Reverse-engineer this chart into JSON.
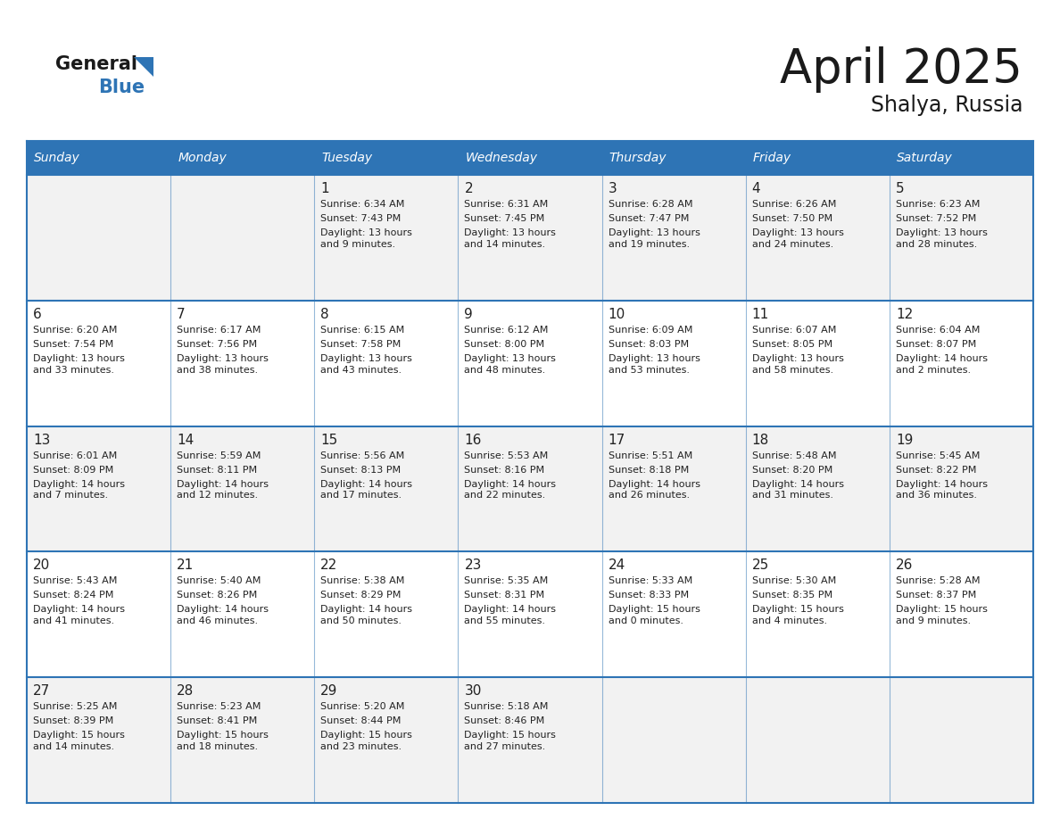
{
  "title": "April 2025",
  "subtitle": "Shalya, Russia",
  "header_bg": "#2E74B5",
  "header_text_color": "#FFFFFF",
  "cell_bg_light": "#F2F2F2",
  "cell_bg_white": "#FFFFFF",
  "border_color": "#2E74B5",
  "text_color": "#222222",
  "days_of_week": [
    "Sunday",
    "Monday",
    "Tuesday",
    "Wednesday",
    "Thursday",
    "Friday",
    "Saturday"
  ],
  "weeks": [
    [
      {
        "day": "",
        "sunrise": "",
        "sunset": "",
        "daylight": ""
      },
      {
        "day": "",
        "sunrise": "",
        "sunset": "",
        "daylight": ""
      },
      {
        "day": "1",
        "sunrise": "Sunrise: 6:34 AM",
        "sunset": "Sunset: 7:43 PM",
        "daylight": "Daylight: 13 hours\nand 9 minutes."
      },
      {
        "day": "2",
        "sunrise": "Sunrise: 6:31 AM",
        "sunset": "Sunset: 7:45 PM",
        "daylight": "Daylight: 13 hours\nand 14 minutes."
      },
      {
        "day": "3",
        "sunrise": "Sunrise: 6:28 AM",
        "sunset": "Sunset: 7:47 PM",
        "daylight": "Daylight: 13 hours\nand 19 minutes."
      },
      {
        "day": "4",
        "sunrise": "Sunrise: 6:26 AM",
        "sunset": "Sunset: 7:50 PM",
        "daylight": "Daylight: 13 hours\nand 24 minutes."
      },
      {
        "day": "5",
        "sunrise": "Sunrise: 6:23 AM",
        "sunset": "Sunset: 7:52 PM",
        "daylight": "Daylight: 13 hours\nand 28 minutes."
      }
    ],
    [
      {
        "day": "6",
        "sunrise": "Sunrise: 6:20 AM",
        "sunset": "Sunset: 7:54 PM",
        "daylight": "Daylight: 13 hours\nand 33 minutes."
      },
      {
        "day": "7",
        "sunrise": "Sunrise: 6:17 AM",
        "sunset": "Sunset: 7:56 PM",
        "daylight": "Daylight: 13 hours\nand 38 minutes."
      },
      {
        "day": "8",
        "sunrise": "Sunrise: 6:15 AM",
        "sunset": "Sunset: 7:58 PM",
        "daylight": "Daylight: 13 hours\nand 43 minutes."
      },
      {
        "day": "9",
        "sunrise": "Sunrise: 6:12 AM",
        "sunset": "Sunset: 8:00 PM",
        "daylight": "Daylight: 13 hours\nand 48 minutes."
      },
      {
        "day": "10",
        "sunrise": "Sunrise: 6:09 AM",
        "sunset": "Sunset: 8:03 PM",
        "daylight": "Daylight: 13 hours\nand 53 minutes."
      },
      {
        "day": "11",
        "sunrise": "Sunrise: 6:07 AM",
        "sunset": "Sunset: 8:05 PM",
        "daylight": "Daylight: 13 hours\nand 58 minutes."
      },
      {
        "day": "12",
        "sunrise": "Sunrise: 6:04 AM",
        "sunset": "Sunset: 8:07 PM",
        "daylight": "Daylight: 14 hours\nand 2 minutes."
      }
    ],
    [
      {
        "day": "13",
        "sunrise": "Sunrise: 6:01 AM",
        "sunset": "Sunset: 8:09 PM",
        "daylight": "Daylight: 14 hours\nand 7 minutes."
      },
      {
        "day": "14",
        "sunrise": "Sunrise: 5:59 AM",
        "sunset": "Sunset: 8:11 PM",
        "daylight": "Daylight: 14 hours\nand 12 minutes."
      },
      {
        "day": "15",
        "sunrise": "Sunrise: 5:56 AM",
        "sunset": "Sunset: 8:13 PM",
        "daylight": "Daylight: 14 hours\nand 17 minutes."
      },
      {
        "day": "16",
        "sunrise": "Sunrise: 5:53 AM",
        "sunset": "Sunset: 8:16 PM",
        "daylight": "Daylight: 14 hours\nand 22 minutes."
      },
      {
        "day": "17",
        "sunrise": "Sunrise: 5:51 AM",
        "sunset": "Sunset: 8:18 PM",
        "daylight": "Daylight: 14 hours\nand 26 minutes."
      },
      {
        "day": "18",
        "sunrise": "Sunrise: 5:48 AM",
        "sunset": "Sunset: 8:20 PM",
        "daylight": "Daylight: 14 hours\nand 31 minutes."
      },
      {
        "day": "19",
        "sunrise": "Sunrise: 5:45 AM",
        "sunset": "Sunset: 8:22 PM",
        "daylight": "Daylight: 14 hours\nand 36 minutes."
      }
    ],
    [
      {
        "day": "20",
        "sunrise": "Sunrise: 5:43 AM",
        "sunset": "Sunset: 8:24 PM",
        "daylight": "Daylight: 14 hours\nand 41 minutes."
      },
      {
        "day": "21",
        "sunrise": "Sunrise: 5:40 AM",
        "sunset": "Sunset: 8:26 PM",
        "daylight": "Daylight: 14 hours\nand 46 minutes."
      },
      {
        "day": "22",
        "sunrise": "Sunrise: 5:38 AM",
        "sunset": "Sunset: 8:29 PM",
        "daylight": "Daylight: 14 hours\nand 50 minutes."
      },
      {
        "day": "23",
        "sunrise": "Sunrise: 5:35 AM",
        "sunset": "Sunset: 8:31 PM",
        "daylight": "Daylight: 14 hours\nand 55 minutes."
      },
      {
        "day": "24",
        "sunrise": "Sunrise: 5:33 AM",
        "sunset": "Sunset: 8:33 PM",
        "daylight": "Daylight: 15 hours\nand 0 minutes."
      },
      {
        "day": "25",
        "sunrise": "Sunrise: 5:30 AM",
        "sunset": "Sunset: 8:35 PM",
        "daylight": "Daylight: 15 hours\nand 4 minutes."
      },
      {
        "day": "26",
        "sunrise": "Sunrise: 5:28 AM",
        "sunset": "Sunset: 8:37 PM",
        "daylight": "Daylight: 15 hours\nand 9 minutes."
      }
    ],
    [
      {
        "day": "27",
        "sunrise": "Sunrise: 5:25 AM",
        "sunset": "Sunset: 8:39 PM",
        "daylight": "Daylight: 15 hours\nand 14 minutes."
      },
      {
        "day": "28",
        "sunrise": "Sunrise: 5:23 AM",
        "sunset": "Sunset: 8:41 PM",
        "daylight": "Daylight: 15 hours\nand 18 minutes."
      },
      {
        "day": "29",
        "sunrise": "Sunrise: 5:20 AM",
        "sunset": "Sunset: 8:44 PM",
        "daylight": "Daylight: 15 hours\nand 23 minutes."
      },
      {
        "day": "30",
        "sunrise": "Sunrise: 5:18 AM",
        "sunset": "Sunset: 8:46 PM",
        "daylight": "Daylight: 15 hours\nand 27 minutes."
      },
      {
        "day": "",
        "sunrise": "",
        "sunset": "",
        "daylight": ""
      },
      {
        "day": "",
        "sunrise": "",
        "sunset": "",
        "daylight": ""
      },
      {
        "day": "",
        "sunrise": "",
        "sunset": "",
        "daylight": ""
      }
    ]
  ]
}
